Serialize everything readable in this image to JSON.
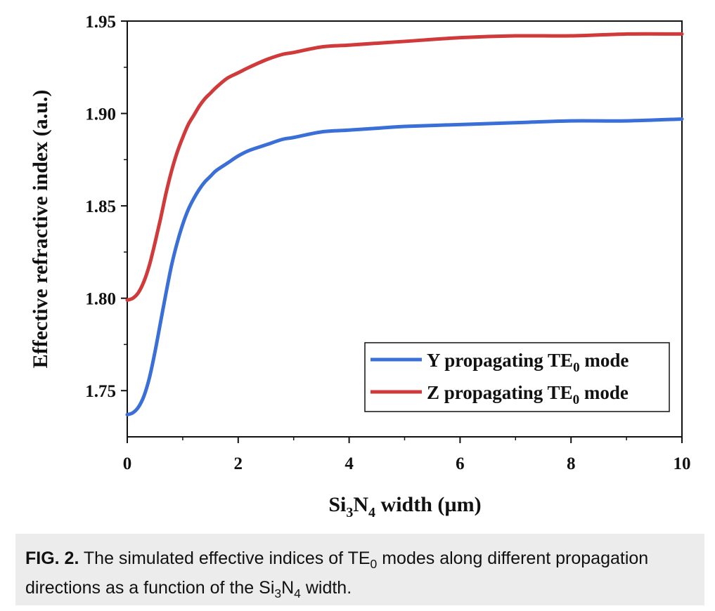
{
  "chart_data": {
    "type": "line",
    "ylabel": "Effective refractive index (a.u.)",
    "xlabel_parts": {
      "pre": "Si",
      "sub1": "3",
      "mid": "N",
      "sub2": "4",
      "post": " width (µm)"
    },
    "xlim": [
      0,
      10
    ],
    "ylim": [
      1.725,
      1.95
    ],
    "x_ticks": [
      0,
      2,
      4,
      6,
      8,
      10
    ],
    "y_ticks": [
      1.75,
      1.8,
      1.85,
      1.9,
      1.95
    ],
    "x_tick_labels": [
      "0",
      "2",
      "4",
      "6",
      "8",
      "10"
    ],
    "y_tick_labels": [
      "1.75",
      "1.80",
      "1.85",
      "1.90",
      "1.95"
    ],
    "legend_position": "bottom-right",
    "x": [
      0,
      0.1,
      0.2,
      0.3,
      0.4,
      0.5,
      0.6,
      0.7,
      0.8,
      0.9,
      1.0,
      1.1,
      1.2,
      1.3,
      1.4,
      1.5,
      1.6,
      1.8,
      2.0,
      2.2,
      2.5,
      2.8,
      3.0,
      3.5,
      4.0,
      4.5,
      5.0,
      6.0,
      7.0,
      8.0,
      9.0,
      10.0
    ],
    "series": [
      {
        "name_parts": {
          "pre": "Y propagating TE",
          "sub": "0",
          "post": " mode"
        },
        "color": "#3b6fd8",
        "values": [
          1.737,
          1.738,
          1.741,
          1.747,
          1.757,
          1.771,
          1.787,
          1.803,
          1.818,
          1.83,
          1.84,
          1.848,
          1.854,
          1.859,
          1.863,
          1.866,
          1.869,
          1.873,
          1.877,
          1.88,
          1.883,
          1.886,
          1.887,
          1.89,
          1.891,
          1.892,
          1.893,
          1.894,
          1.895,
          1.896,
          1.896,
          1.897
        ]
      },
      {
        "name_parts": {
          "pre": "Z propagating TE",
          "sub": "0",
          "post": " mode"
        },
        "color": "#d03a3a",
        "values": [
          1.799,
          1.8,
          1.803,
          1.809,
          1.818,
          1.83,
          1.843,
          1.857,
          1.869,
          1.879,
          1.887,
          1.894,
          1.899,
          1.904,
          1.908,
          1.911,
          1.914,
          1.919,
          1.922,
          1.925,
          1.929,
          1.932,
          1.933,
          1.936,
          1.937,
          1.938,
          1.939,
          1.941,
          1.942,
          1.942,
          1.943,
          1.943
        ]
      }
    ]
  },
  "caption": {
    "fig_label": "FIG. 2.",
    "text_pre": " The simulated effective indices of TE",
    "te_sub": "0",
    "text_mid": " modes along different propagation directions as a function of the Si",
    "si_sub": "3",
    "n": "N",
    "n_sub": "4",
    "text_post": " width."
  }
}
